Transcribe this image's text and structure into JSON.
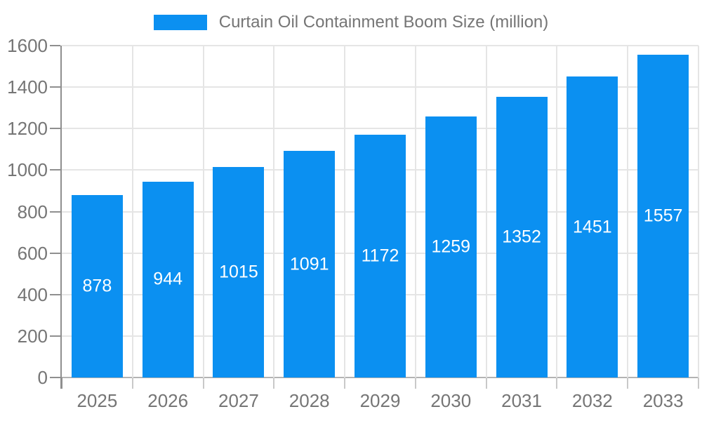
{
  "legend": {
    "swatch_icon": "legend-color-swatch"
  },
  "chart_data": {
    "type": "bar",
    "title": "Curtain Oil Containment Boom Size (million)",
    "categories": [
      "2025",
      "2026",
      "2027",
      "2028",
      "2029",
      "2030",
      "2031",
      "2032",
      "2033"
    ],
    "values": [
      878,
      944,
      1015,
      1091,
      1172,
      1259,
      1352,
      1451,
      1557
    ],
    "series": [
      {
        "name": "Curtain Oil Containment Boom Size (million)",
        "values": [
          878,
          944,
          1015,
          1091,
          1172,
          1259,
          1352,
          1451,
          1557
        ]
      }
    ],
    "xlabel": "",
    "ylabel": "",
    "ylim": [
      0,
      1600
    ],
    "ytick_step": 200,
    "ytick_labels": [
      "0",
      "200",
      "400",
      "600",
      "800",
      "1000",
      "1200",
      "1400",
      "1600"
    ],
    "grid": true,
    "legend_position": "top",
    "value_labels_shown": true,
    "colors": {
      "bar": "#0b90f1",
      "value_label": "#ffffff",
      "axis_text": "#757575",
      "grid": "#e5e5e5",
      "axis_line": "#8f8f8f",
      "zero_line": "#b3b3b3",
      "background": "#ffffff"
    }
  }
}
